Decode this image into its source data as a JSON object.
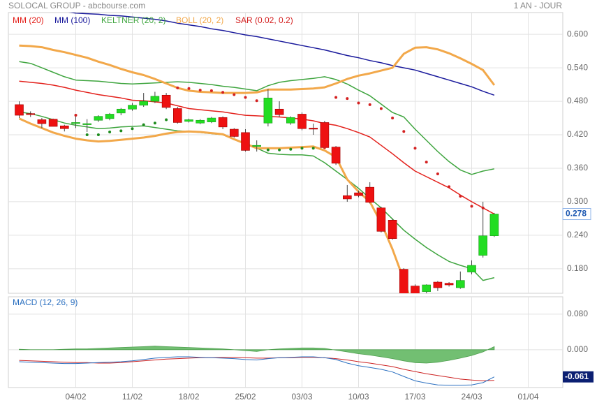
{
  "chart_data": {
    "type": "candlestick",
    "title": "SOLOCAL GROUP - abcbourse.com",
    "subtitle": "1 AN - JOUR",
    "categories": [
      null,
      null,
      null,
      null,
      null,
      "04/02",
      null,
      null,
      null,
      null,
      "11/02",
      null,
      null,
      null,
      null,
      "18/02",
      null,
      null,
      null,
      null,
      "25/02",
      null,
      null,
      null,
      null,
      "03/03",
      null,
      null,
      null,
      null,
      "10/03",
      null,
      null,
      null,
      null,
      "17/03",
      null,
      null,
      null,
      null,
      "24/03",
      null,
      null,
      null,
      null,
      "01/04"
    ],
    "open": [
      0.474,
      0.458,
      0.447,
      0.448,
      0.436,
      0.441,
      0.44,
      0.446,
      0.449,
      0.459,
      0.466,
      0.473,
      0.48,
      0.491,
      0.467,
      0.444,
      0.441,
      0.443,
      0.451,
      0.43,
      0.424,
      0.4,
      0.441,
      0.466,
      0.441,
      0.457,
      0.432,
      0.442,
      0.398,
      0.311,
      0.316,
      0.326,
      0.289,
      0.267,
      0.179,
      0.149,
      0.139,
      0.156,
      0.154,
      0.146,
      0.174,
      0.204,
      0.239,
      null,
      null,
      null
    ],
    "high": [
      0.48,
      0.462,
      0.45,
      0.449,
      0.438,
      0.455,
      0.448,
      0.455,
      0.459,
      0.468,
      0.477,
      0.495,
      0.497,
      0.495,
      0.47,
      0.449,
      0.448,
      0.452,
      0.453,
      0.432,
      0.43,
      0.41,
      0.502,
      0.48,
      0.453,
      0.46,
      0.44,
      0.445,
      0.4,
      0.33,
      0.32,
      0.335,
      0.291,
      0.27,
      0.181,
      0.152,
      0.152,
      0.158,
      0.156,
      0.175,
      0.195,
      0.3,
      0.28,
      null,
      null,
      null
    ],
    "low": [
      0.45,
      0.452,
      0.432,
      0.435,
      0.426,
      0.432,
      0.425,
      0.443,
      0.446,
      0.455,
      0.463,
      0.47,
      0.477,
      0.466,
      0.44,
      0.442,
      0.439,
      0.441,
      0.43,
      0.415,
      0.39,
      0.39,
      0.435,
      0.452,
      0.438,
      0.428,
      0.42,
      0.395,
      0.366,
      0.3,
      0.308,
      0.297,
      0.245,
      0.232,
      0.125,
      0.125,
      0.136,
      0.14,
      0.148,
      0.144,
      0.17,
      0.2,
      0.237,
      null,
      null,
      null
    ],
    "close": [
      0.455,
      0.457,
      0.44,
      0.435,
      0.431,
      0.442,
      0.44,
      0.453,
      0.457,
      0.466,
      0.473,
      0.48,
      0.489,
      0.469,
      0.442,
      0.447,
      0.446,
      0.45,
      0.434,
      0.417,
      0.392,
      0.401,
      0.486,
      0.456,
      0.451,
      0.431,
      0.431,
      0.397,
      0.369,
      0.305,
      0.311,
      0.299,
      0.247,
      0.234,
      0.13,
      0.133,
      0.151,
      0.146,
      0.151,
      0.159,
      0.186,
      0.239,
      0.278,
      null,
      null,
      null
    ],
    "up_color": "#22dd22",
    "down_color": "#ee1111",
    "ylim": [
      0.136,
      0.639
    ],
    "yticks": [
      {
        "value": 0.18,
        "label": "0.180"
      },
      {
        "value": 0.24,
        "label": "0.240"
      },
      {
        "value": 0.3,
        "label": "0.300"
      },
      {
        "value": 0.36,
        "label": "0.360"
      },
      {
        "value": 0.42,
        "label": "0.420"
      },
      {
        "value": 0.48,
        "label": "0.480"
      },
      {
        "value": 0.54,
        "label": "0.540"
      },
      {
        "value": 0.6,
        "label": "0.600"
      }
    ],
    "grid": true,
    "overlays": [
      {
        "name": "MM (20)",
        "color": "#e3201b",
        "line_width": 1.5,
        "values": [
          0.516,
          0.514,
          0.512,
          0.509,
          0.505,
          0.5,
          0.496,
          0.492,
          0.489,
          0.486,
          0.482,
          0.481,
          0.479,
          0.477,
          0.472,
          0.467,
          0.465,
          0.463,
          0.461,
          0.458,
          0.455,
          0.454,
          0.453,
          0.452,
          0.45,
          0.448,
          0.445,
          0.44,
          0.437,
          0.431,
          0.424,
          0.416,
          0.401,
          0.386,
          0.37,
          0.355,
          0.345,
          0.335,
          0.325,
          0.312,
          0.3,
          0.289,
          0.278,
          null,
          null,
          null
        ]
      },
      {
        "name": "MM (100)",
        "color": "#1a1a9c",
        "line_width": 1.5,
        "values": [
          0.65,
          0.648,
          0.646,
          0.644,
          0.641,
          0.638,
          0.637,
          0.636,
          0.634,
          0.633,
          0.631,
          0.629,
          0.627,
          0.624,
          0.62,
          0.617,
          0.614,
          0.61,
          0.607,
          0.603,
          0.599,
          0.596,
          0.592,
          0.588,
          0.584,
          0.58,
          0.576,
          0.572,
          0.567,
          0.562,
          0.558,
          0.553,
          0.549,
          0.544,
          0.54,
          0.536,
          0.53,
          0.524,
          0.518,
          0.512,
          0.506,
          0.498,
          0.491,
          null,
          null,
          null
        ]
      },
      {
        "name": "KELTNER (20, 2)",
        "color": "#3fa53f",
        "line_width": 1.5,
        "upper": [
          0.551,
          0.548,
          0.54,
          0.532,
          0.524,
          0.518,
          0.517,
          0.516,
          0.514,
          0.512,
          0.511,
          0.512,
          0.513,
          0.514,
          0.515,
          0.514,
          0.512,
          0.51,
          0.507,
          0.505,
          0.502,
          0.499,
          0.508,
          0.514,
          0.517,
          0.519,
          0.521,
          0.524,
          0.519,
          0.511,
          0.5,
          0.49,
          0.475,
          0.46,
          0.452,
          0.43,
          0.41,
          0.39,
          0.372,
          0.357,
          0.349,
          0.355,
          0.359,
          null,
          null,
          null
        ],
        "lower": [
          0.461,
          0.458,
          0.453,
          0.447,
          0.441,
          0.437,
          0.434,
          0.431,
          0.432,
          0.434,
          0.435,
          0.436,
          0.433,
          0.43,
          0.427,
          0.426,
          0.424,
          0.422,
          0.42,
          0.412,
          0.404,
          0.396,
          0.387,
          0.385,
          0.384,
          0.384,
          0.382,
          0.37,
          0.355,
          0.34,
          0.324,
          0.306,
          0.289,
          0.269,
          0.249,
          0.233,
          0.218,
          0.205,
          0.193,
          0.186,
          0.18,
          0.159,
          0.164,
          null,
          null,
          null
        ]
      },
      {
        "name": "BOLL (20, 2)",
        "color": "#f2a84a",
        "line_width": 3,
        "upper": [
          0.58,
          0.579,
          0.577,
          0.572,
          0.568,
          0.563,
          0.558,
          0.551,
          0.545,
          0.538,
          0.532,
          0.527,
          0.52,
          0.512,
          0.504,
          0.499,
          0.497,
          0.496,
          0.495,
          0.495,
          0.495,
          0.496,
          0.501,
          0.501,
          0.501,
          0.502,
          0.503,
          0.505,
          0.512,
          0.52,
          0.526,
          0.53,
          0.535,
          0.54,
          0.565,
          0.576,
          0.577,
          0.573,
          0.566,
          0.557,
          0.547,
          0.536,
          0.509,
          null,
          null,
          null
        ],
        "lower": [
          0.449,
          0.44,
          0.432,
          0.424,
          0.418,
          0.413,
          0.41,
          0.408,
          0.409,
          0.411,
          0.413,
          0.415,
          0.418,
          0.422,
          0.425,
          0.426,
          0.425,
          0.423,
          0.421,
          0.412,
          0.404,
          0.396,
          0.396,
          0.396,
          0.397,
          0.398,
          0.399,
          0.392,
          0.38,
          0.34,
          0.318,
          0.3,
          0.262,
          0.215,
          0.16,
          0.1,
          0.09,
          0.085,
          0.082,
          0.082,
          0.086,
          0.094,
          0.105,
          null,
          null,
          null
        ]
      },
      {
        "name": "SAR (0.02, 0.2)",
        "color": "#d42020",
        "below_color": "#1e8c1e",
        "style": "dots",
        "values": [
          null,
          null,
          null,
          null,
          null,
          0.455,
          0.42,
          0.42,
          0.425,
          0.427,
          0.431,
          0.438,
          0.441,
          0.447,
          0.504,
          0.503,
          0.5,
          0.499,
          0.496,
          0.492,
          0.487,
          0.481,
          0.393,
          0.393,
          0.394,
          0.396,
          0.396,
          0.397,
          0.487,
          0.485,
          0.477,
          0.474,
          0.467,
          0.45,
          0.426,
          0.396,
          0.371,
          0.35,
          0.327,
          0.31,
          0.292,
          0.289,
          null,
          null,
          null,
          null
        ]
      }
    ],
    "macd": {
      "title": "MACD (12, 26, 9)",
      "ylim": [
        -0.085,
        0.119
      ],
      "yticks": [
        {
          "value": 0,
          "label": "0.000"
        },
        {
          "value": 0.08,
          "label": "0.080"
        }
      ],
      "line": {
        "color": "#2a6fc0",
        "values": [
          -0.027,
          -0.028,
          -0.029,
          -0.03,
          -0.031,
          -0.031,
          -0.03,
          -0.029,
          -0.028,
          -0.027,
          -0.025,
          -0.022,
          -0.019,
          -0.017,
          -0.016,
          -0.016,
          -0.017,
          -0.018,
          -0.019,
          -0.02,
          -0.022,
          -0.023,
          -0.02,
          -0.018,
          -0.017,
          -0.016,
          -0.016,
          -0.018,
          -0.022,
          -0.03,
          -0.036,
          -0.04,
          -0.044,
          -0.05,
          -0.06,
          -0.07,
          -0.075,
          -0.079,
          -0.08,
          -0.08,
          -0.079,
          -0.074,
          -0.061,
          null,
          null,
          null
        ]
      },
      "signal": {
        "color": "#cc2222",
        "values": [
          -0.024,
          -0.025,
          -0.026,
          -0.027,
          -0.028,
          -0.029,
          -0.029,
          -0.03,
          -0.03,
          -0.029,
          -0.027,
          -0.025,
          -0.023,
          -0.021,
          -0.02,
          -0.019,
          -0.018,
          -0.018,
          -0.017,
          -0.017,
          -0.018,
          -0.019,
          -0.019,
          -0.018,
          -0.018,
          -0.017,
          -0.017,
          -0.018,
          -0.02,
          -0.023,
          -0.027,
          -0.03,
          -0.034,
          -0.038,
          -0.044,
          -0.049,
          -0.054,
          -0.058,
          -0.062,
          -0.066,
          -0.068,
          -0.07,
          -0.069,
          null,
          null,
          null
        ]
      },
      "histogram": {
        "color": "#72bf72",
        "values": [
          0.001,
          0.0,
          0.0,
          0.0,
          0.001,
          0.002,
          0.002,
          0.003,
          0.004,
          0.005,
          0.006,
          0.007,
          0.008,
          0.007,
          0.006,
          0.005,
          0.004,
          0.003,
          0.002,
          0.0,
          -0.002,
          -0.004,
          0.0,
          0.002,
          0.003,
          0.004,
          0.004,
          0.003,
          -0.001,
          -0.005,
          -0.009,
          -0.012,
          -0.016,
          -0.02,
          -0.025,
          -0.029,
          -0.03,
          -0.028,
          -0.024,
          -0.019,
          -0.013,
          -0.005,
          0.007,
          null,
          null,
          null
        ]
      }
    }
  }
}
